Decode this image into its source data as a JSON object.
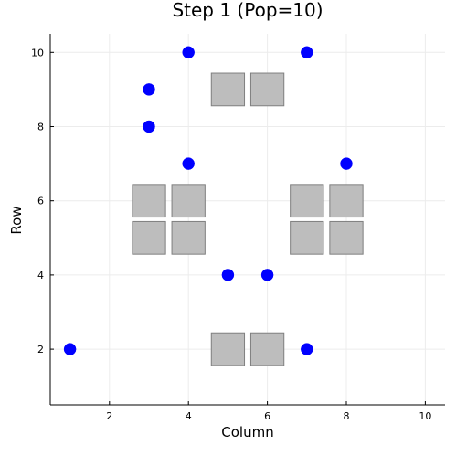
{
  "chart_data": {
    "type": "scatter",
    "title": "Step 1 (Pop=10)",
    "xlabel": "Column",
    "ylabel": "Row",
    "xlim": [
      0.5,
      10.5
    ],
    "ylim": [
      0.5,
      10.5
    ],
    "xticks": [
      2,
      4,
      6,
      8,
      10
    ],
    "yticks": [
      2,
      4,
      6,
      8,
      10
    ],
    "grid": true,
    "legend": "none",
    "points": [
      {
        "x": 1,
        "y": 2
      },
      {
        "x": 3,
        "y": 8
      },
      {
        "x": 3,
        "y": 9
      },
      {
        "x": 4,
        "y": 7
      },
      {
        "x": 4,
        "y": 10
      },
      {
        "x": 5,
        "y": 4
      },
      {
        "x": 6,
        "y": 4
      },
      {
        "x": 7,
        "y": 2
      },
      {
        "x": 7,
        "y": 10
      },
      {
        "x": 8,
        "y": 7
      }
    ],
    "obstacles": [
      {
        "x": 5,
        "y": 9
      },
      {
        "x": 6,
        "y": 9
      },
      {
        "x": 3,
        "y": 6
      },
      {
        "x": 4,
        "y": 6
      },
      {
        "x": 3,
        "y": 5
      },
      {
        "x": 4,
        "y": 5
      },
      {
        "x": 7,
        "y": 6
      },
      {
        "x": 8,
        "y": 6
      },
      {
        "x": 7,
        "y": 5
      },
      {
        "x": 8,
        "y": 5
      },
      {
        "x": 5,
        "y": 2
      },
      {
        "x": 6,
        "y": 2
      }
    ],
    "colors": {
      "points": "#0000ff",
      "obstacle_fill": "#bdbdbd",
      "obstacle_stroke": "#7f7f7f",
      "grid": "#ececec",
      "axis": "#000000"
    }
  }
}
